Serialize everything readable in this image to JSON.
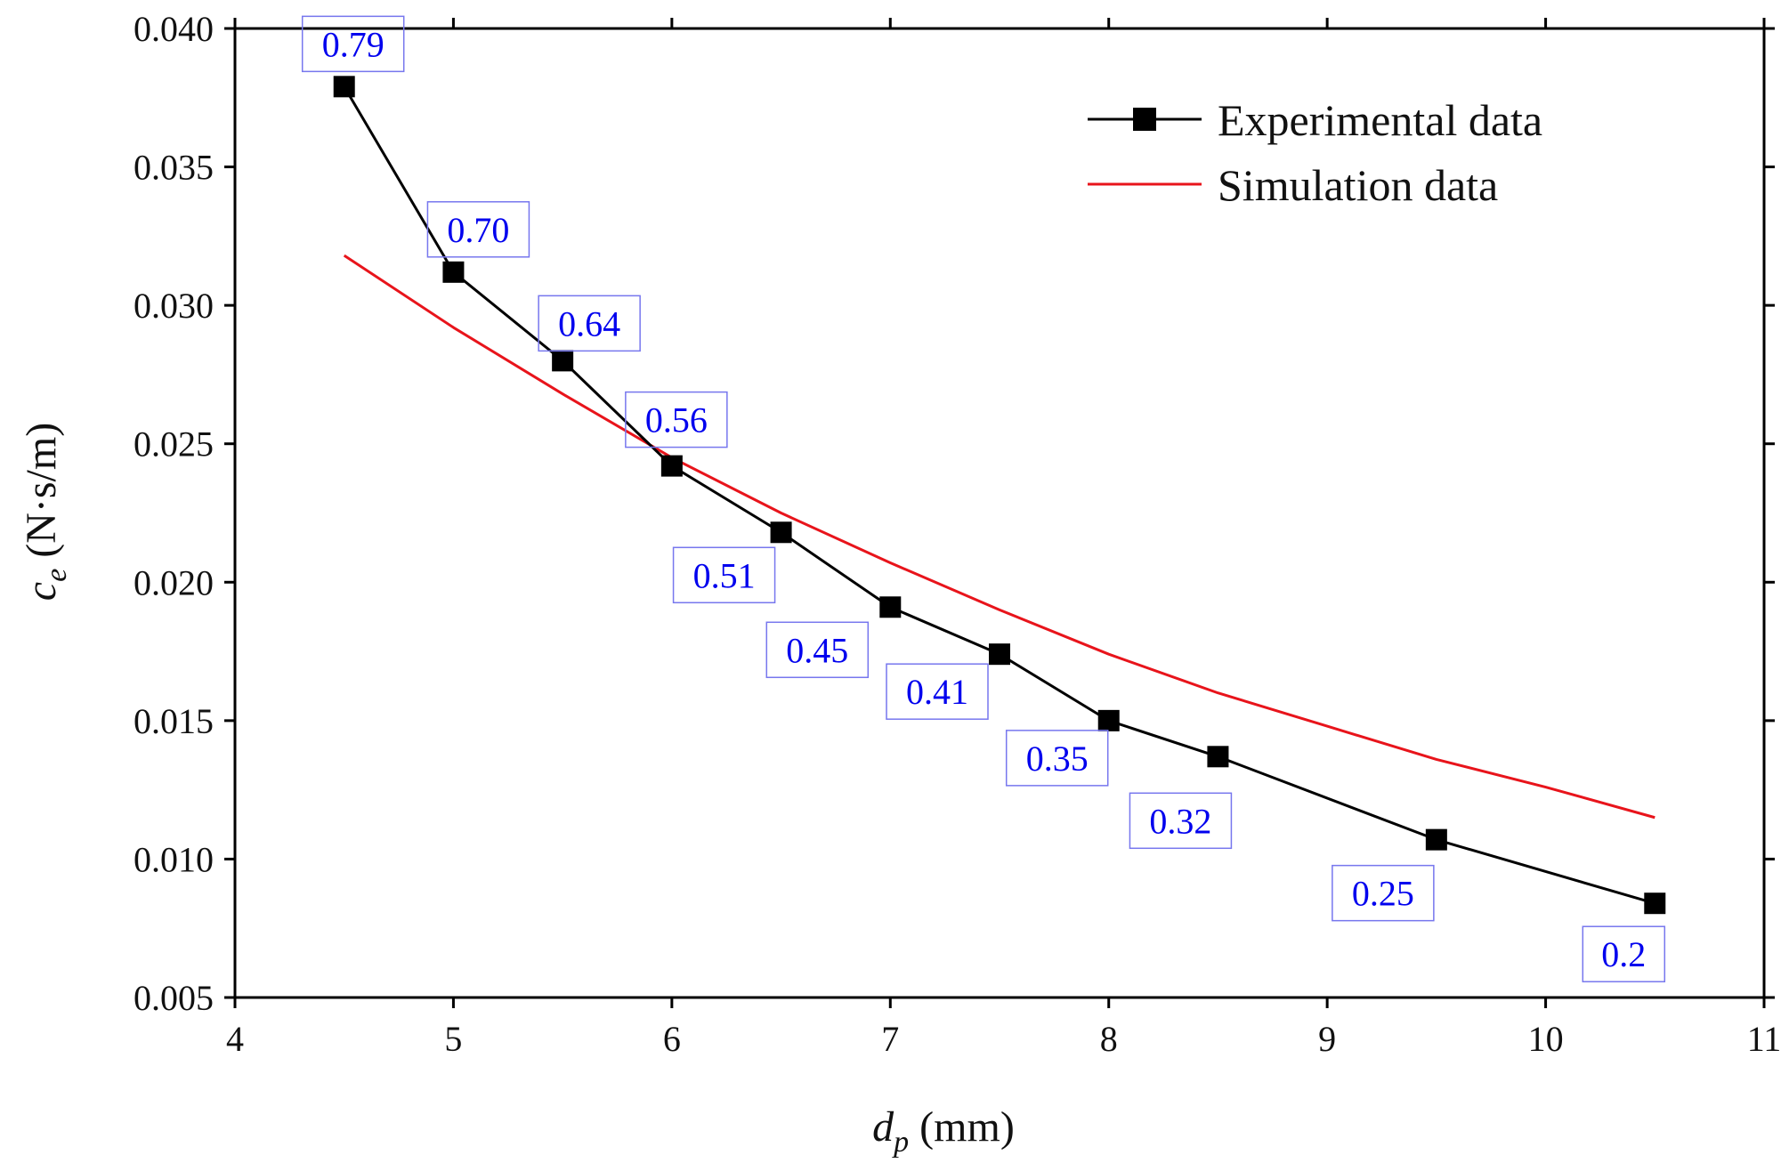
{
  "chart_data": {
    "type": "line",
    "title": "",
    "xlabel": {
      "symbol": "d",
      "subscript": "p",
      "unit": " (mm)"
    },
    "ylabel": {
      "symbol": "c",
      "subscript": "e",
      "unit": " (N·s/m)"
    },
    "xlim": [
      4,
      11
    ],
    "ylim": [
      0.005,
      0.04
    ],
    "x_ticks": [
      4,
      5,
      6,
      7,
      8,
      9,
      10,
      11
    ],
    "x_tick_labels": [
      "4",
      "5",
      "6",
      "7",
      "8",
      "9",
      "10",
      "11"
    ],
    "y_ticks": [
      0.005,
      0.01,
      0.015,
      0.02,
      0.025,
      0.03,
      0.035,
      0.04
    ],
    "y_tick_labels": [
      "0.005",
      "0.010",
      "0.015",
      "0.020",
      "0.025",
      "0.030",
      "0.035",
      "0.040"
    ],
    "grid": false,
    "legend_position": "top-right",
    "series": [
      {
        "name": "Experimental data",
        "color": "#000000",
        "marker": "square",
        "x": [
          4.5,
          5.0,
          5.5,
          6.0,
          6.5,
          7.0,
          7.5,
          8.0,
          8.5,
          9.5,
          10.5
        ],
        "y": [
          0.0379,
          0.0312,
          0.028,
          0.0242,
          0.0218,
          0.0191,
          0.0174,
          0.015,
          0.0137,
          0.0107,
          0.0084
        ]
      },
      {
        "name": "Simulation data",
        "color": "#e8141b",
        "marker": "none",
        "x": [
          4.5,
          5.0,
          5.5,
          6.0,
          6.5,
          7.0,
          7.5,
          8.0,
          8.5,
          9.0,
          9.5,
          10.0,
          10.5
        ],
        "y": [
          0.0318,
          0.0292,
          0.0268,
          0.0245,
          0.0225,
          0.0207,
          0.019,
          0.0174,
          0.016,
          0.0148,
          0.0136,
          0.0126,
          0.0115
        ]
      }
    ],
    "annotations": [
      {
        "text": "0.79",
        "x": 4.5,
        "y": 0.0379,
        "color": "#0000ee"
      },
      {
        "text": "0.70",
        "x": 5.0,
        "y": 0.0312,
        "color": "#0000ee"
      },
      {
        "text": "0.64",
        "x": 5.5,
        "y": 0.028,
        "color": "#0000ee"
      },
      {
        "text": "0.56",
        "x": 6.0,
        "y": 0.0242,
        "color": "#0000ee"
      },
      {
        "text": "0.51",
        "x": 6.5,
        "y": 0.0218,
        "color": "#0000ee"
      },
      {
        "text": "0.45",
        "x": 7.0,
        "y": 0.0191,
        "color": "#0000ee"
      },
      {
        "text": "0.41",
        "x": 7.5,
        "y": 0.0174,
        "color": "#0000ee"
      },
      {
        "text": "0.35",
        "x": 8.0,
        "y": 0.015,
        "color": "#0000ee"
      },
      {
        "text": "0.32",
        "x": 8.5,
        "y": 0.0137,
        "color": "#0000ee"
      },
      {
        "text": "0.25",
        "x": 9.5,
        "y": 0.0107,
        "color": "#0000ee"
      },
      {
        "text": "0.2",
        "x": 10.5,
        "y": 0.0084,
        "color": "#0000ee"
      }
    ]
  }
}
